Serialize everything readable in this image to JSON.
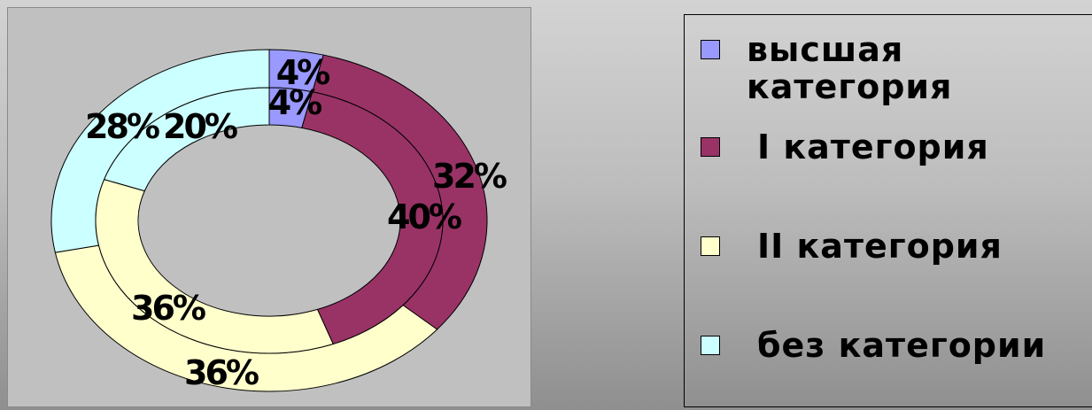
{
  "chart_data": {
    "type": "doughnut",
    "categories": [
      "высшая категория",
      "I категория",
      "II категория",
      "без категории"
    ],
    "colors": [
      "#9999ff",
      "#993366",
      "#ffffcc",
      "#ccffff"
    ],
    "series": [
      {
        "values": [
          4,
          32,
          36,
          28
        ],
        "labels": [
          "4%",
          "32%",
          "36%",
          "28%"
        ]
      },
      {
        "values": [
          4,
          40,
          36,
          20
        ],
        "labels": [
          "4%",
          "40%",
          "36%",
          "20%"
        ]
      }
    ],
    "legend": {
      "position": "right"
    }
  }
}
